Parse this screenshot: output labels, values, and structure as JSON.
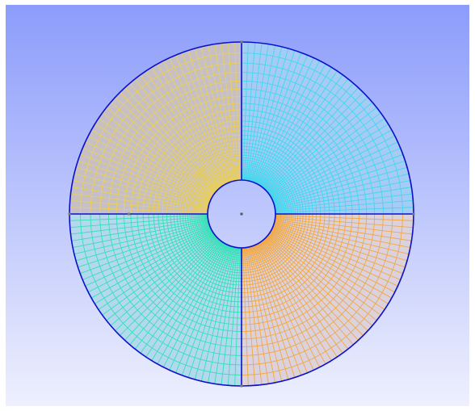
{
  "viewport": {
    "background_top": "#8c9cfb",
    "background_bottom": "#eef0fd"
  },
  "mesh": {
    "outline_color": "#0a10cc",
    "edge_node_color": "#7a7a7a",
    "center_node_color": "#555555",
    "radial_divisions": 36,
    "arc_divisions_per_quadrant": 40,
    "radial_grading": 1.08,
    "quadrants": [
      {
        "id": "top-right",
        "start_deg": 0,
        "end_deg": 90,
        "color": "#41d8ec",
        "fill": "#a6ccf6"
      },
      {
        "id": "top-left",
        "start_deg": 90,
        "end_deg": 180,
        "color": "#eacf5a",
        "fill": "#c6c0c6"
      },
      {
        "id": "bottom-left",
        "start_deg": 180,
        "end_deg": 270,
        "color": "#33e0b6",
        "fill": "#b4d9ef"
      },
      {
        "id": "bottom-right",
        "start_deg": 270,
        "end_deg": 360,
        "color": "#f0a844",
        "fill": "#dcd2de"
      }
    ]
  }
}
